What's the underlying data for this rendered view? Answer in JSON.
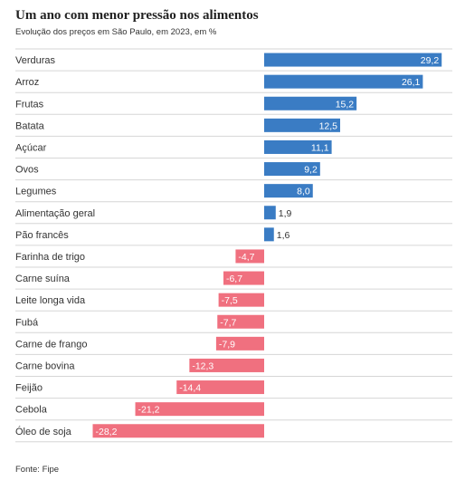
{
  "chart_data": {
    "type": "bar",
    "orientation": "horizontal",
    "title": "Um ano com menor pressão nos alimentos",
    "subtitle": "Evolução dos preços em São Paulo, em 2023, em %",
    "source": "Fonte: Fipe",
    "categories": [
      "Verduras",
      "Arroz",
      "Frutas",
      "Batata",
      "Açúcar",
      "Ovos",
      "Legumes",
      "Alimentação geral",
      "Pão francês",
      "Farinha de trigo",
      "Carne suína",
      "Leite longa vida",
      "Fubá",
      "Carne de frango",
      "Carne bovina",
      "Feijão",
      "Cebola",
      "Óleo de soja"
    ],
    "values": [
      29.2,
      26.1,
      15.2,
      12.5,
      11.1,
      9.2,
      8.0,
      1.9,
      1.6,
      -4.7,
      -6.7,
      -7.5,
      -7.7,
      -7.9,
      -12.3,
      -14.4,
      -21.2,
      -28.2
    ],
    "value_labels": [
      "29,2",
      "26,1",
      "15,2",
      "12,5",
      "11,1",
      "9,2",
      "8,0",
      "1,9",
      "1,6",
      "-4,7",
      "-6,7",
      "-7,5",
      "-7,7",
      "-7,9",
      "-12,3",
      "-14,4",
      "-21,2",
      "-28,2"
    ],
    "xlim": [
      -29.5,
      29.5
    ],
    "colors": {
      "positive": "#3a7cc4",
      "negative": "#f0707f",
      "separator": "#d6d6d6"
    }
  }
}
